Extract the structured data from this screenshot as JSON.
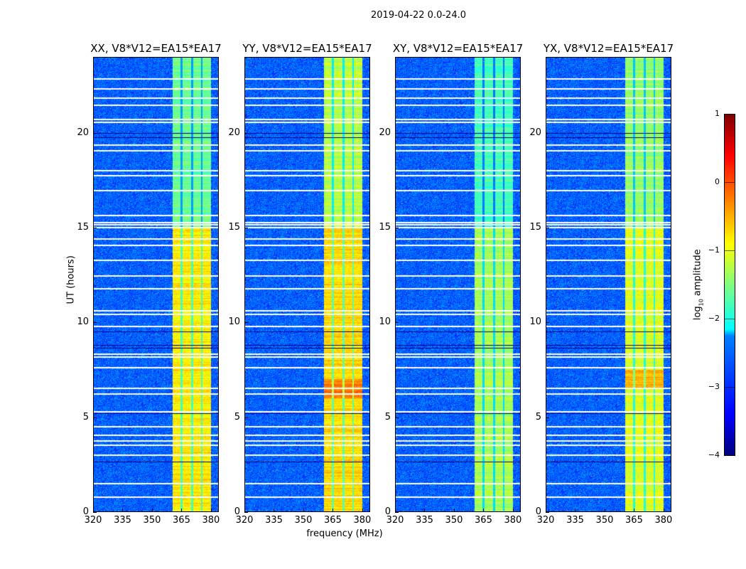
{
  "chart_data": {
    "type": "heatmap",
    "title": "2019-04-22 0.0-24.0",
    "xlabel": "frequency (MHz)",
    "ylabel": "UT (hours)",
    "xlim": [
      320,
      384
    ],
    "ylim": [
      0,
      24
    ],
    "xticks": [
      "320",
      "335",
      "350",
      "365",
      "380"
    ],
    "yticks": [
      "0",
      "5",
      "10",
      "15",
      "20"
    ],
    "colorbar": {
      "label": "log10 amplitude",
      "label_main": "log",
      "label_sub": "10",
      "label_rest": " amplitude",
      "range": [
        -4,
        1
      ],
      "ticks": [
        "1",
        "0",
        "−1",
        "−2",
        "−3",
        "−4"
      ],
      "colormap": "jet"
    },
    "background_level": -2.9,
    "band_edges_mhz": [
      360.5,
      380
    ],
    "band_gaps_mhz": [
      365,
      370.5,
      375.5
    ],
    "flagged_hours_white": [
      22.9,
      22.4,
      21.9,
      21.5,
      20.75,
      20.6,
      19.4,
      19.1,
      18.05,
      17.8,
      17.0,
      15.7,
      15.3,
      15.2,
      15.05,
      14.45,
      14.1,
      13.3,
      12.5,
      11.8,
      10.65,
      10.45,
      9.8,
      8.35,
      8.2,
      7.65,
      6.55,
      6.25,
      5.3,
      4.5,
      4.05,
      3.75,
      3.55,
      3.0,
      1.5,
      0.8
    ],
    "flagged_hours_black": [
      20.0,
      19.8,
      8.8,
      8.65,
      9.5,
      5.2,
      2.65
    ],
    "panels": [
      {
        "title": "XX, V8*V12=EA15*EA17",
        "band_level_low": -0.8,
        "band_level_high": -1.6,
        "hot_hours": []
      },
      {
        "title": "YY, V8*V12=EA15*EA17",
        "band_level_low": -0.7,
        "band_level_high": -1.2,
        "hot_hours": [
          6.0,
          7.0
        ]
      },
      {
        "title": "XY, V8*V12=EA15*EA17",
        "band_level_low": -1.3,
        "band_level_high": -1.8,
        "hot_hours": []
      },
      {
        "title": "YX, V8*V12=EA15*EA17",
        "band_level_low": -1.0,
        "band_level_high": -1.4,
        "hot_hours": [
          6.5,
          7.5
        ]
      }
    ]
  }
}
